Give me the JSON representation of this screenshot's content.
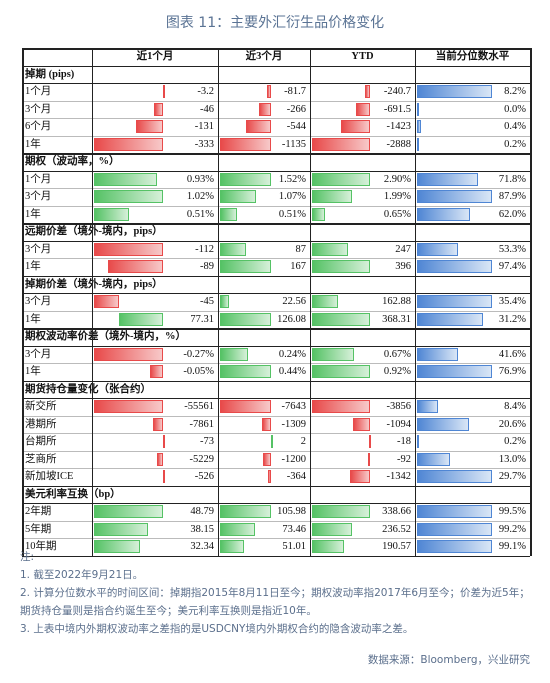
{
  "title": "图表 11：主要外汇衍生品价格变化",
  "table": {
    "header": [
      "近1个月",
      "近3个月",
      "YTD",
      "当前分位数水平"
    ],
    "sections": [
      {
        "title": "掉期 (pips)",
        "rows": [
          [
            "1个月",
            "-3.2",
            "-81.7",
            "-240.7",
            "8.2%"
          ],
          [
            "3个月",
            "-46",
            "-266",
            "-691.5",
            "0.0%"
          ],
          [
            "6个月",
            "-131",
            "-544",
            "-1423",
            "0.4%"
          ],
          [
            "1年",
            "-333",
            "-1135",
            "-2888",
            "0.2%"
          ]
        ]
      },
      {
        "title": "期权（波动率，%）",
        "rows": [
          [
            "1个月",
            "0.93%",
            "1.52%",
            "2.90%",
            "71.8%"
          ],
          [
            "3个月",
            "1.02%",
            "1.07%",
            "1.99%",
            "87.9%"
          ],
          [
            "1年",
            "0.51%",
            "0.51%",
            "0.65%",
            "62.0%"
          ]
        ]
      },
      {
        "title": "远期价差（境外-境内，pips）",
        "rows": [
          [
            "3个月",
            "-112",
            "87",
            "247",
            "53.3%"
          ],
          [
            "1年",
            "-89",
            "167",
            "396",
            "97.4%"
          ]
        ]
      },
      {
        "title": "掉期价差（境外-境内，pips）",
        "rows": [
          [
            "3个月",
            "-45",
            "22.56",
            "162.88",
            "35.4%"
          ],
          [
            "1年",
            "77.31",
            "126.08",
            "368.31",
            "31.2%"
          ]
        ]
      },
      {
        "title": "期权波动率价差（境外-境内，%）",
        "rows": [
          [
            "3个月",
            "-0.27%",
            "0.24%",
            "0.67%",
            "41.6%"
          ],
          [
            "1年",
            "-0.05%",
            "0.44%",
            "0.92%",
            "76.9%"
          ]
        ]
      },
      {
        "title": "期货持仓量变化（张合约）",
        "rows": [
          [
            "新交所",
            "-55561",
            "-7643",
            "-3856",
            "8.4%"
          ],
          [
            "港期所",
            "-7861",
            "-1309",
            "-1094",
            "20.6%"
          ],
          [
            "台期所",
            "-73",
            "2",
            "-18",
            "0.2%"
          ],
          [
            "芝商所",
            "-5229",
            "-1200",
            "-92",
            "13.0%"
          ],
          [
            "新加坡ICE",
            "-526",
            "-364",
            "-1342",
            "29.7%"
          ]
        ]
      },
      {
        "title": "美元利率互换（bp）",
        "rows": [
          [
            "2年期",
            "48.79",
            "105.98",
            "338.66",
            "99.5%"
          ],
          [
            "5年期",
            "38.15",
            "73.46",
            "236.52",
            "99.2%"
          ],
          [
            "10年期",
            "32.34",
            "51.01",
            "190.57",
            "99.1%"
          ]
        ]
      }
    ]
  },
  "notes": {
    "heading": "注:",
    "items": [
      "1. 截至2022年9月21日。",
      "2. 计算分位数水平的时间区间：掉期指2015年8月11日至今；期权波动率指2017年6月至今；价差为近5年；期货持仓量则是指合约诞生至今；美元利率互换则是指近10年。",
      "3. 上表中境内外期权波动率之差指的是USDCNY境内外期权合约的隐含波动率之差。"
    ]
  },
  "source": "数据来源：Bloomberg，兴业研究"
}
